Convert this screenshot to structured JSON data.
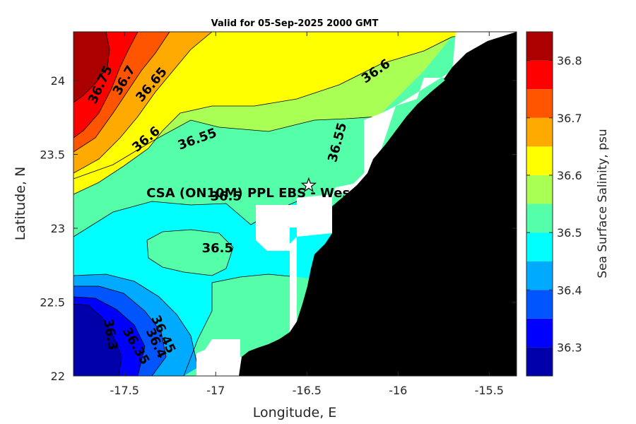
{
  "chart_data": {
    "type": "heatmap",
    "title": "Valid for 05-Sep-2025 2000 GMT",
    "xlabel": "Longitude, E",
    "ylabel": "Latitude, N",
    "xlim": [
      -17.78,
      -15.35
    ],
    "ylim": [
      22.0,
      24.33
    ],
    "x_ticks": [
      -17.5,
      -17,
      -16.5,
      -16,
      -15.5
    ],
    "x_tick_labels": [
      "-17.5",
      "-17",
      "-16.5",
      "-16",
      "-15.5"
    ],
    "y_ticks": [
      22,
      22.5,
      23,
      23.5,
      24
    ],
    "y_tick_labels": [
      "22",
      "22.5",
      "23",
      "23.5",
      "24"
    ],
    "colorbar": {
      "label": "Sea Surface Salinity, psu",
      "range": [
        36.25,
        36.85
      ],
      "levels": [
        36.25,
        36.3,
        36.35,
        36.4,
        36.45,
        36.5,
        36.55,
        36.6,
        36.65,
        36.7,
        36.75,
        36.8,
        36.85
      ],
      "colors": [
        "#0000aa",
        "#0000ff",
        "#0055ff",
        "#00aaff",
        "#00ffff",
        "#55ffaa",
        "#aaff55",
        "#ffff00",
        "#ffaa00",
        "#ff5500",
        "#ff0000",
        "#aa0000"
      ],
      "ticks": [
        36.3,
        36.4,
        36.5,
        36.6,
        36.7,
        36.8
      ],
      "tick_labels": [
        "36.3",
        "36.4",
        "36.5",
        "36.6",
        "36.7",
        "36.8"
      ]
    },
    "contour_labels": [
      {
        "text": "36.75",
        "x": -17.63,
        "y": 23.97,
        "angle": -65
      },
      {
        "text": "36.7",
        "x": -17.5,
        "y": 24.0,
        "angle": -60
      },
      {
        "text": "36.65",
        "x": -17.35,
        "y": 23.97,
        "angle": -50
      },
      {
        "text": "36.6",
        "x": -16.12,
        "y": 24.06,
        "angle": -35
      },
      {
        "text": "36.6",
        "x": -17.38,
        "y": 23.6,
        "angle": -40
      },
      {
        "text": "36.55",
        "x": -17.1,
        "y": 23.6,
        "angle": -20
      },
      {
        "text": "36.55",
        "x": -16.33,
        "y": 23.58,
        "angle": -75
      },
      {
        "text": "36.5",
        "x": -16.99,
        "y": 22.86,
        "angle": 0
      },
      {
        "text": "36.45",
        "x": -17.29,
        "y": 22.28,
        "angle": 65
      },
      {
        "text": "36.4",
        "x": -17.33,
        "y": 22.22,
        "angle": 65
      },
      {
        "text": "36.35",
        "x": -17.44,
        "y": 22.2,
        "angle": 60
      },
      {
        "text": "36.3",
        "x": -17.58,
        "y": 22.28,
        "angle": 80
      }
    ],
    "annotations": [
      {
        "text": "CSA (ON10M) PPL EBS  - Wes",
        "x": -17.38,
        "y": 23.21
      },
      {
        "text": "36.5",
        "x": -17.03,
        "y": 23.19
      }
    ],
    "station_marker": {
      "symbol": "star",
      "x": -16.49,
      "y": 23.29
    }
  }
}
